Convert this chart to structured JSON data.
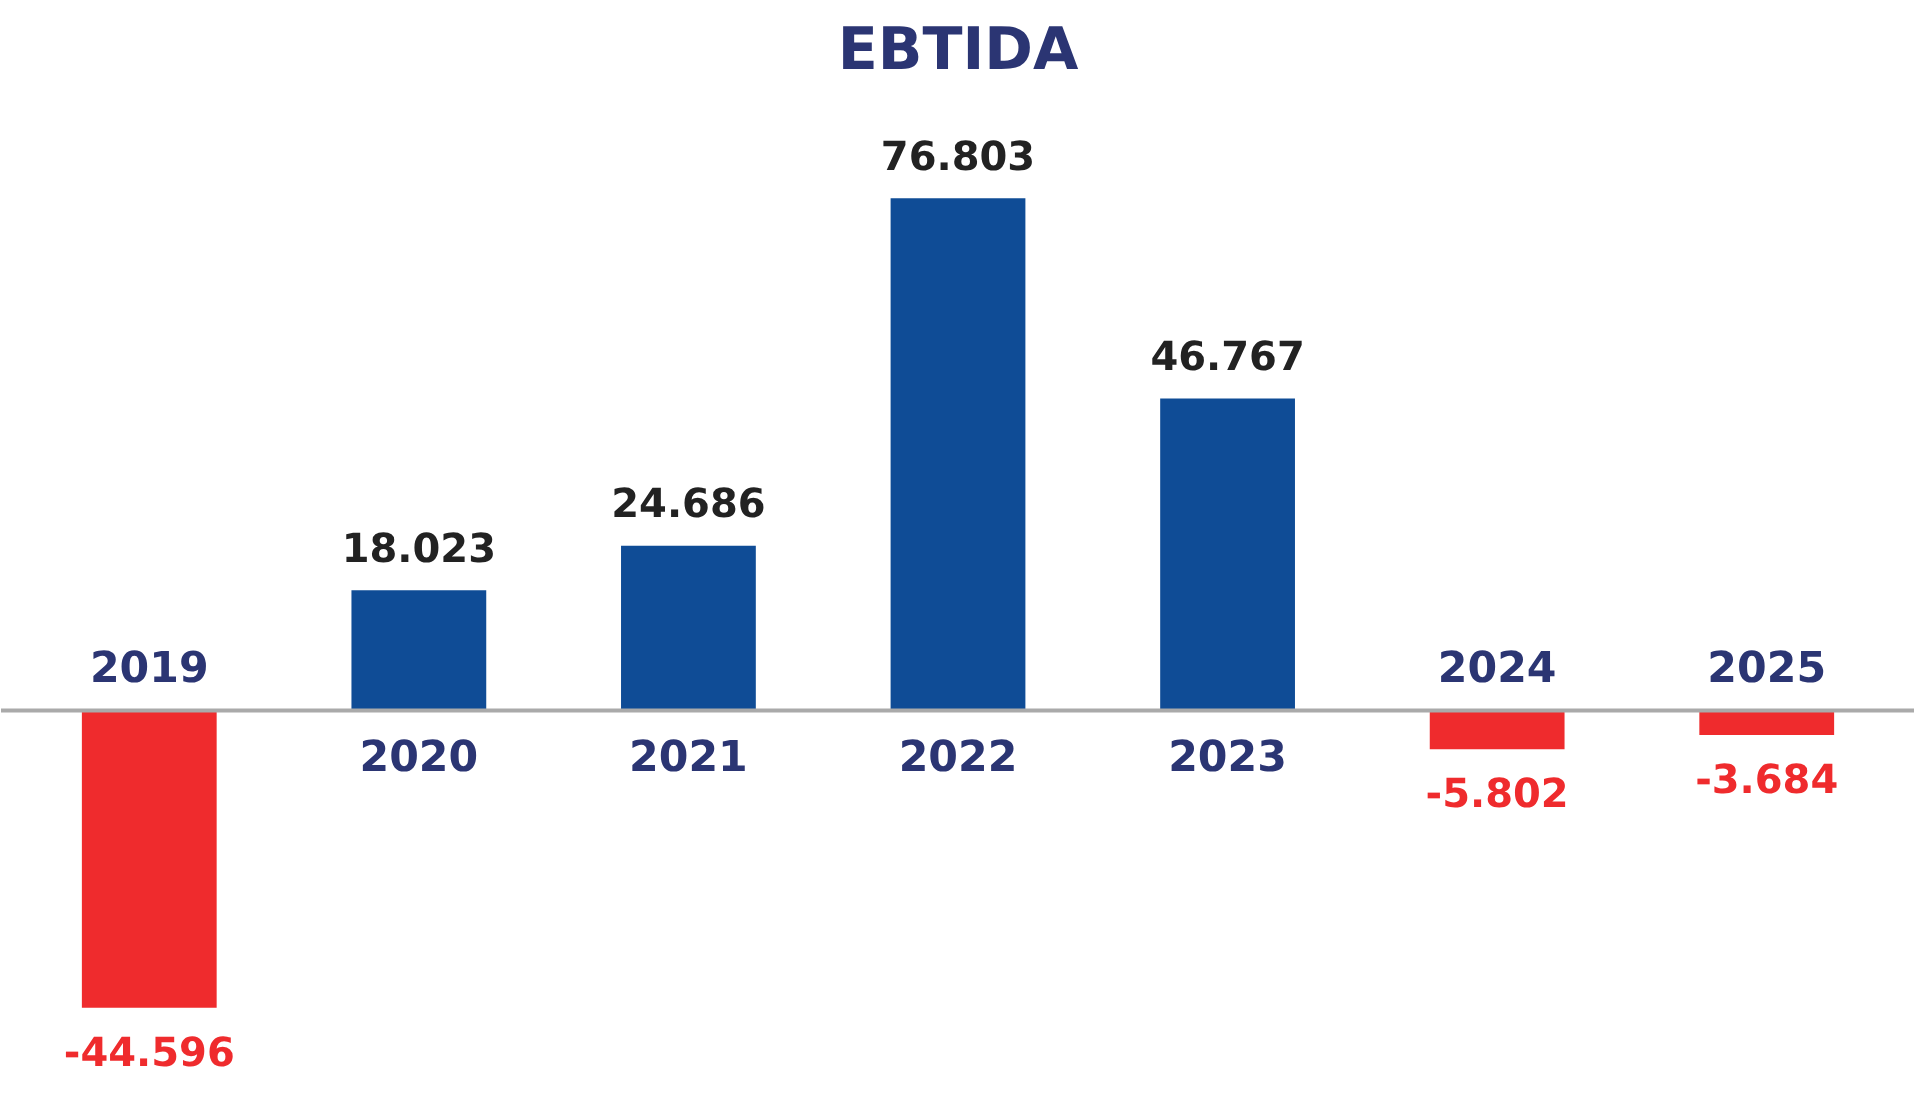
{
  "chart_data": {
    "type": "bar",
    "title": "EBTIDA",
    "categories": [
      "2019",
      "2020",
      "2021",
      "2022",
      "2023",
      "2024",
      "2025"
    ],
    "values": [
      -44.596,
      18.023,
      24.686,
      76.803,
      46.767,
      -5.802,
      -3.684
    ],
    "colors": [
      "#ef2b2d",
      "#0f4c96",
      "#0f4c96",
      "#0f4c96",
      "#0f4c96",
      "#ef2b2d",
      "#ef2b2d"
    ],
    "data_labels": true
  }
}
